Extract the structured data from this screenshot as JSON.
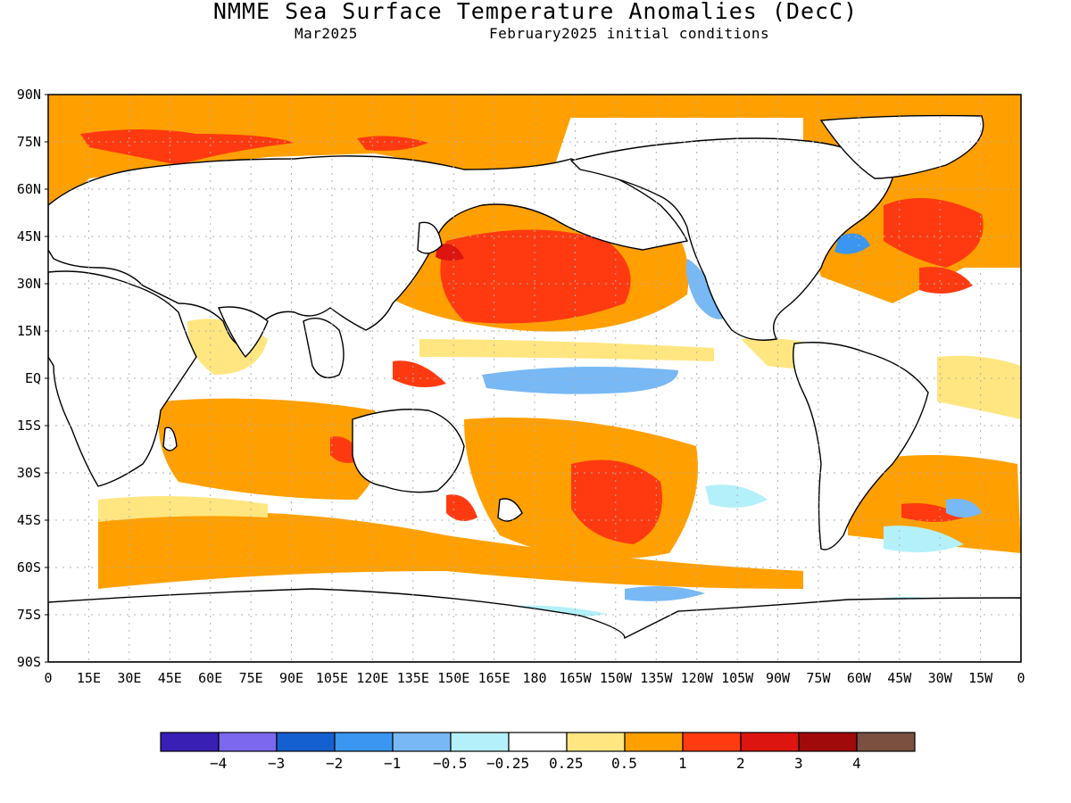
{
  "title": "NMME Sea Surface Temperature Anomalies (DecC)",
  "subtitle_left": "Mar2025",
  "subtitle_right": "February2025 initial conditions",
  "lat_labels": [
    "90N",
    "75N",
    "60N",
    "45N",
    "30N",
    "15N",
    "EQ",
    "15S",
    "30S",
    "45S",
    "60S",
    "75S",
    "90S"
  ],
  "lon_labels": [
    "0",
    "15E",
    "30E",
    "45E",
    "60E",
    "75E",
    "90E",
    "105E",
    "120E",
    "135E",
    "150E",
    "165E",
    "180",
    "165W",
    "150W",
    "135W",
    "120W",
    "105W",
    "90W",
    "75W",
    "60W",
    "45W",
    "30W",
    "15W",
    "0"
  ],
  "colorbar": {
    "colors": [
      "#3a1fb5",
      "#7b68ee",
      "#1560d0",
      "#3a96f0",
      "#78b8f5",
      "#b4f0fa",
      "#ffffff",
      "#ffe680",
      "#ffa000",
      "#ff3a10",
      "#dd1510",
      "#a00a0a",
      "#7a5040"
    ],
    "labels": [
      "−4",
      "−3",
      "−2",
      "−1",
      "−0.5",
      "−0.25",
      "0.25",
      "0.5",
      "1",
      "2",
      "3",
      "4"
    ]
  },
  "map_colors": {
    "ocean_neutral": "#ffffff",
    "warm_weak": "#ffe680",
    "warm_moderate": "#ffa000",
    "warm_strong": "#ff3a10",
    "warm_very_strong": "#dd1510",
    "cool_weak": "#b4f0fa",
    "cool_moderate": "#78b8f5",
    "cool_strong": "#3a96f0",
    "land": "#ffffff",
    "coast": "#000000",
    "grid": "#b0b0b0"
  }
}
